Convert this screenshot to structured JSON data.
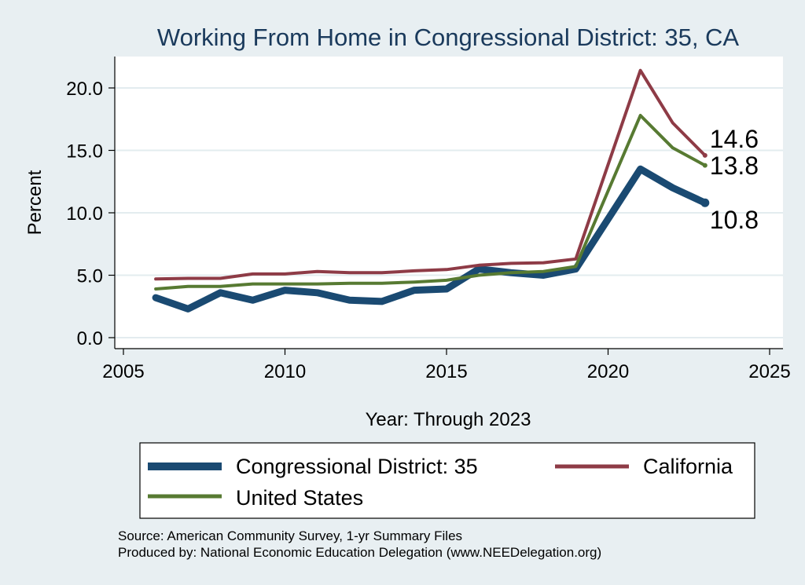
{
  "chart_data": {
    "type": "line",
    "title": "Working From Home in Congressional District: 35, CA",
    "xlabel": "Year: Through 2023",
    "ylabel": "Percent",
    "xlim": [
      2005,
      2025
    ],
    "ylim": [
      0,
      21.5
    ],
    "x_ticks": [
      "2005",
      "2010",
      "2015",
      "2020",
      "2025"
    ],
    "y_ticks": [
      "0.0",
      "5.0",
      "10.0",
      "15.0",
      "20.0"
    ],
    "grid": true,
    "legend_position": "bottom",
    "x": [
      2006,
      2007,
      2008,
      2009,
      2010,
      2011,
      2012,
      2013,
      2014,
      2015,
      2016,
      2017,
      2018,
      2019,
      2021,
      2022,
      2023
    ],
    "series": [
      {
        "name": "Congressional District: 35",
        "color": "#1a4a72",
        "width": "thick",
        "values": [
          3.2,
          2.3,
          3.6,
          3.0,
          3.8,
          3.6,
          3.0,
          2.9,
          3.8,
          3.9,
          5.5,
          5.2,
          5.0,
          5.5,
          13.5,
          12.0,
          10.8
        ],
        "end_label": "10.8"
      },
      {
        "name": "California",
        "color": "#8e3b46",
        "width": "medium",
        "values": [
          4.7,
          4.75,
          4.75,
          5.1,
          5.1,
          5.3,
          5.2,
          5.2,
          5.35,
          5.45,
          5.8,
          5.95,
          6.0,
          6.3,
          21.4,
          17.2,
          14.6
        ],
        "end_label": "14.6"
      },
      {
        "name": "United States",
        "color": "#577a32",
        "width": "medium",
        "values": [
          3.9,
          4.1,
          4.1,
          4.3,
          4.3,
          4.3,
          4.35,
          4.35,
          4.45,
          4.6,
          5.0,
          5.2,
          5.3,
          5.7,
          17.8,
          15.2,
          13.8
        ],
        "end_label": "13.8"
      }
    ],
    "legend_order": [
      "Congressional District: 35",
      "California",
      "United States"
    ]
  },
  "source_lines": [
    "Source: American Community Survey, 1-yr Summary Files",
    "Produced by: National Economic Education Delegation (www.NEEDelegation.org)"
  ]
}
